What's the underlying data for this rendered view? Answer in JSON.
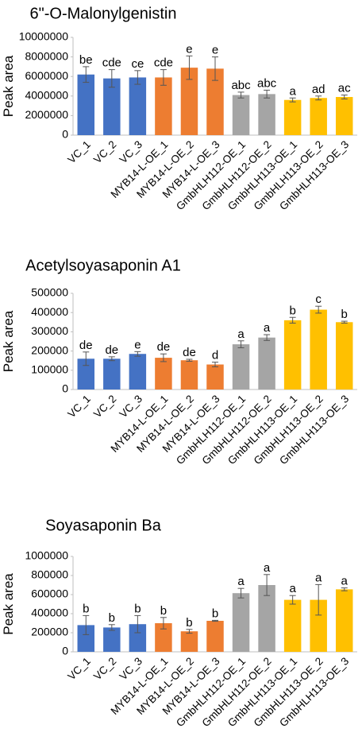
{
  "chart_data": [
    {
      "type": "bar",
      "title": "6\"-O-Malonylgenistin",
      "y_label": "Peak area",
      "categories": [
        "VC_1",
        "VC_2",
        "VC_3",
        "MYB14-L-OE_1",
        "MYB14-L-OE_2",
        "MYB14-L-OE_3",
        "GmbHLH112-OE_1",
        "GmbHLH112-OE_2",
        "GmbHLH113-OE_1",
        "GmbHLH113-OE_2",
        "GmbHLH113-OE_3"
      ],
      "values": [
        6200000,
        5800000,
        5900000,
        5900000,
        6900000,
        6800000,
        4100000,
        4200000,
        3600000,
        3800000,
        3900000
      ],
      "errors": [
        800000,
        900000,
        700000,
        800000,
        1200000,
        1200000,
        300000,
        400000,
        200000,
        200000,
        200000
      ],
      "annotations": [
        "be",
        "cde",
        "ce",
        "cde",
        "e",
        "e",
        "abc",
        "abc",
        "a",
        "ad",
        "ac"
      ],
      "colors": [
        "#4472c4",
        "#4472c4",
        "#4472c4",
        "#ed7d31",
        "#ed7d31",
        "#ed7d31",
        "#a5a5a5",
        "#a5a5a5",
        "#ffc000",
        "#ffc000",
        "#ffc000"
      ],
      "ylim": [
        0,
        10000000
      ],
      "yticks": [
        0,
        2000000,
        4000000,
        6000000,
        8000000,
        10000000
      ]
    },
    {
      "type": "bar",
      "title": "Acetylsoyasaponin A1",
      "y_label": "Peak area",
      "categories": [
        "VC_1",
        "VC_2",
        "VC_3",
        "MYB14-L-OE_1",
        "MYB14-L-OE_2",
        "MYB14-L-OE_3",
        "GmbHLH112-OE_1",
        "GmbHLH112-OE_2",
        "GmbHLH113-OE_1",
        "GmbHLH113-OE_2",
        "GmbHLH113-OE_3"
      ],
      "values": [
        160000,
        160000,
        185000,
        165000,
        152000,
        130000,
        235000,
        270000,
        360000,
        415000,
        350000
      ],
      "errors": [
        35000,
        10000,
        12000,
        20000,
        5000,
        12000,
        18000,
        15000,
        15000,
        18000,
        5000
      ],
      "annotations": [
        "de",
        "de",
        "e",
        "de",
        "de",
        "d",
        "a",
        "a",
        "b",
        "c",
        "b"
      ],
      "colors": [
        "#4472c4",
        "#4472c4",
        "#4472c4",
        "#ed7d31",
        "#ed7d31",
        "#ed7d31",
        "#a5a5a5",
        "#a5a5a5",
        "#ffc000",
        "#ffc000",
        "#ffc000"
      ],
      "ylim": [
        0,
        500000
      ],
      "yticks": [
        0,
        100000,
        200000,
        300000,
        400000,
        500000
      ]
    },
    {
      "type": "bar",
      "title": "Soyasaponin Ba",
      "y_label": "Peak area",
      "categories": [
        "VC_1",
        "VC_2",
        "VC_3",
        "MYB14-L-OE_1",
        "MYB14-L-OE_2",
        "MYB14-L-OE_3",
        "GmbHLH112-OE_1",
        "GmbHLH112-OE_2",
        "GmbHLH113-OE_1",
        "GmbHLH113-OE_2",
        "GmbHLH113-OE_3"
      ],
      "values": [
        280000,
        255000,
        290000,
        300000,
        215000,
        325000,
        615000,
        700000,
        545000,
        545000,
        655000
      ],
      "errors": [
        100000,
        30000,
        90000,
        60000,
        20000,
        5000,
        50000,
        110000,
        45000,
        160000,
        15000
      ],
      "annotations": [
        "b",
        "b",
        "b",
        "b",
        "b",
        "b",
        "a",
        "a",
        "a",
        "a",
        "a"
      ],
      "colors": [
        "#4472c4",
        "#4472c4",
        "#4472c4",
        "#ed7d31",
        "#ed7d31",
        "#ed7d31",
        "#a5a5a5",
        "#a5a5a5",
        "#ffc000",
        "#ffc000",
        "#ffc000"
      ],
      "ylim": [
        0,
        1000000
      ],
      "yticks": [
        0,
        200000,
        400000,
        600000,
        800000,
        1000000
      ]
    }
  ]
}
